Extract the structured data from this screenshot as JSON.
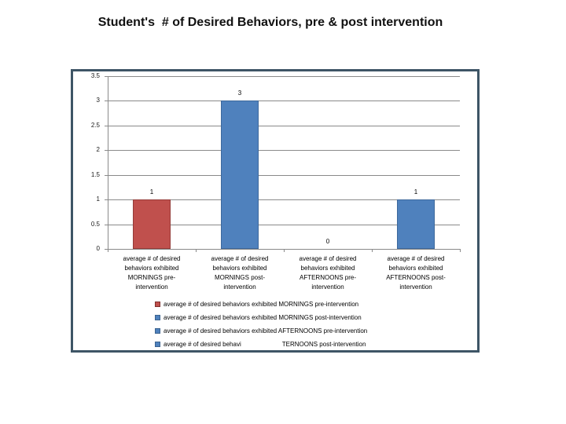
{
  "chart_data": {
    "type": "bar",
    "title": "Student's  # of Desired Behaviors, pre & post intervention",
    "xlabel": "",
    "ylabel": "",
    "categories": [
      "average # of desired behaviors exhibited MORNINGS pre-intervention",
      "average # of desired behaviors exhibited MORNINGS post-intervention",
      "average # of desired behaviors exhibited AFTERNOONS pre-intervention",
      "average # of desired behaviors exhibited AFTERNOONS post-intervention"
    ],
    "category_lines": [
      [
        "average # of desired",
        "behaviors exhibited",
        "MORNINGS pre-",
        "intervention"
      ],
      [
        "average # of desired",
        "behaviors exhibited",
        "MORNINGS post-",
        "intervention"
      ],
      [
        "average # of desired",
        "behaviors exhibited",
        "AFTERNOONS pre-",
        "intervention"
      ],
      [
        "average # of desired",
        "behaviors exhibited",
        "AFTERNOONS post-",
        "intervention"
      ]
    ],
    "values": [
      1,
      3,
      0,
      1
    ],
    "data_labels": [
      "1",
      "3",
      "0",
      "1"
    ],
    "series_colors": [
      "#c0504d",
      "#4f81bd",
      "#4f81bd",
      "#4f81bd"
    ],
    "bar_border_colors": [
      "#953c39",
      "#3d689c",
      "#3d689c",
      "#3d689c"
    ],
    "ylim": [
      0,
      3.5
    ],
    "y_ticks": [
      "0",
      "0.5",
      "1",
      "1.5",
      "2",
      "2.5",
      "3",
      "3.5"
    ],
    "grid": true,
    "legend_position": "bottom",
    "legend": [
      {
        "color": "#c0504d",
        "border": "#7e302e",
        "label": "average # of desired behaviors exhibited MORNINGS pre-intervention"
      },
      {
        "color": "#4f81bd",
        "border": "#3c638f",
        "label": "average # of desired behaviors exhibited MORNINGS post-intervention"
      },
      {
        "color": "#4f81bd",
        "border": "#3c638f",
        "label": "average # of desired behaviors exhibited AFTERNOONS pre-intervention"
      },
      {
        "color": "#4f81bd",
        "border": "#3c638f",
        "label": "average # of desired behavi",
        "label_end": "TERNOONS post-intervention",
        "obscured_gap": true
      }
    ]
  },
  "colors": {
    "frame_border": "#3e5566",
    "gridline": "#8a8a8a",
    "background": "#ffffff",
    "text": "#000000"
  }
}
